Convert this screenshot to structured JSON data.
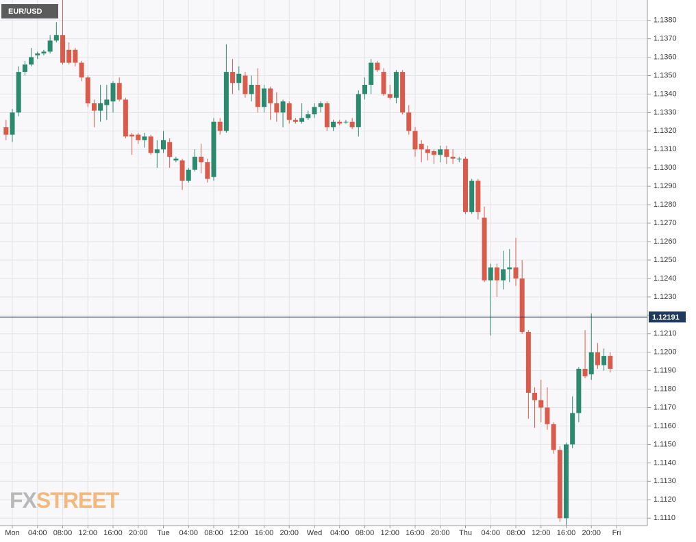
{
  "chart_data": {
    "type": "candlestick",
    "title": "EUR/USD",
    "watermark": {
      "prefix": "FX",
      "suffix": "STREET"
    },
    "x": [
      -1,
      0,
      1,
      2,
      3,
      4,
      5,
      6,
      7,
      8,
      9,
      10,
      11,
      12,
      13,
      14,
      15,
      16,
      17,
      18,
      19,
      20,
      21,
      22,
      23,
      24,
      25,
      26,
      27,
      28,
      29,
      30,
      31,
      32,
      33,
      34,
      35,
      36,
      37,
      38,
      39,
      40,
      41,
      42,
      43,
      44,
      45,
      46,
      47,
      48,
      49,
      50,
      51,
      52,
      53,
      54,
      55,
      56,
      57,
      58,
      59,
      60,
      61,
      62,
      63,
      64,
      65,
      66,
      67,
      68,
      69,
      70,
      71,
      72,
      73,
      74,
      75,
      76,
      77,
      78,
      79,
      80,
      81,
      82,
      83,
      84,
      85,
      86,
      87,
      88,
      89,
      90,
      91,
      92,
      93,
      94,
      95
    ],
    "open": [
      1.1322,
      1.1318,
      1.133,
      1.1352,
      1.1356,
      1.1361,
      1.1362,
      1.1363,
      1.1369,
      1.1372,
      1.1364,
      1.1364,
      1.1357,
      1.1349,
      1.1335,
      1.1331,
      1.1334,
      1.1336,
      1.1346,
      1.1337,
      1.1318,
      1.1318,
      1.1315,
      1.1317,
      1.1308,
      1.131,
      1.1314,
      1.1304,
      1.1304,
      1.1293,
      1.1299,
      1.1306,
      1.1303,
      1.1295,
      1.1325,
      1.132,
      1.1352,
      1.1346,
      1.135,
      1.134,
      1.1345,
      1.1333,
      1.1343,
      1.1335,
      1.133,
      1.1335,
      1.1326,
      1.1325,
      1.1327,
      1.1329,
      1.1333,
      1.1335,
      1.1322,
      1.1325,
      1.1325,
      1.1325,
      1.1322,
      1.134,
      1.1345,
      1.1357,
      1.1352,
      1.134,
      1.1338,
      1.1352,
      1.133,
      1.132,
      1.1313,
      1.131,
      1.1309,
      1.1307,
      1.131,
      1.1306,
      1.1305,
      1.1305,
      1.1276,
      1.1293,
      1.1273,
      1.1239,
      1.1246,
      1.1239,
      1.1245,
      1.1246,
      1.124,
      1.1211,
      1.1178,
      1.1174,
      1.117,
      1.1161,
      1.1147,
      1.111,
      1.115,
      1.1167,
      1.1191,
      1.1188,
      1.12,
      1.1193,
      1.1198
    ],
    "high": [
      1.1326,
      1.1332,
      1.1355,
      1.1358,
      1.1365,
      1.1363,
      1.1364,
      1.1372,
      1.1379,
      1.1391,
      1.1368,
      1.1365,
      1.1358,
      1.135,
      1.1337,
      1.1345,
      1.1345,
      1.1347,
      1.1349,
      1.1338,
      1.1319,
      1.1319,
      1.1319,
      1.1318,
      1.1315,
      1.132,
      1.1316,
      1.1306,
      1.1305,
      1.13,
      1.131,
      1.1313,
      1.1305,
      1.1327,
      1.1327,
      1.1367,
      1.1359,
      1.1355,
      1.1352,
      1.135,
      1.1354,
      1.1345,
      1.1344,
      1.1341,
      1.1337,
      1.1336,
      1.1327,
      1.1335,
      1.1331,
      1.1335,
      1.1336,
      1.1336,
      1.1326,
      1.1326,
      1.1326,
      1.1327,
      1.1342,
      1.1349,
      1.1359,
      1.1358,
      1.1354,
      1.1345,
      1.1353,
      1.1353,
      1.1334,
      1.1322,
      1.1315,
      1.1312,
      1.131,
      1.1312,
      1.1312,
      1.131,
      1.1306,
      1.1306,
      1.1294,
      1.1294,
      1.1279,
      1.1248,
      1.1248,
      1.1255,
      1.1256,
      1.1262,
      1.125,
      1.1212,
      1.1181,
      1.1185,
      1.1181,
      1.1162,
      1.1149,
      1.1151,
      1.1176,
      1.1192,
      1.1212,
      1.1221,
      1.1205,
      1.1202,
      1.12
    ],
    "low": [
      1.1315,
      1.1314,
      1.1328,
      1.135,
      1.1355,
      1.1359,
      1.1361,
      1.1362,
      1.1368,
      1.1356,
      1.1356,
      1.1355,
      1.1347,
      1.1333,
      1.1322,
      1.1325,
      1.1326,
      1.133,
      1.1336,
      1.1316,
      1.1307,
      1.1313,
      1.1311,
      1.1307,
      1.13,
      1.1308,
      1.13,
      1.1303,
      1.1288,
      1.1292,
      1.1298,
      1.1297,
      1.1292,
      1.1293,
      1.1318,
      1.1319,
      1.134,
      1.1342,
      1.1338,
      1.1336,
      1.133,
      1.133,
      1.1326,
      1.1325,
      1.1322,
      1.1324,
      1.1324,
      1.1324,
      1.1326,
      1.1327,
      1.133,
      1.132,
      1.132,
      1.1323,
      1.1324,
      1.1321,
      1.1317,
      1.1337,
      1.134,
      1.1352,
      1.1339,
      1.1337,
      1.1335,
      1.1329,
      1.1318,
      1.1306,
      1.1303,
      1.1304,
      1.1302,
      1.1303,
      1.1302,
      1.1302,
      1.1303,
      1.1275,
      1.1275,
      1.1272,
      1.1238,
      1.1209,
      1.123,
      1.1234,
      1.1238,
      1.1236,
      1.121,
      1.1164,
      1.1159,
      1.1162,
      1.1158,
      1.1145,
      1.1108,
      1.1106,
      1.1148,
      1.1162,
      1.1186,
      1.1185,
      1.1191,
      1.119,
      1.1189
    ],
    "close": [
      1.1318,
      1.133,
      1.1352,
      1.1356,
      1.136,
      1.1362,
      1.1363,
      1.1369,
      1.1372,
      1.1357,
      1.1357,
      1.1357,
      1.1349,
      1.1335,
      1.1331,
      1.1335,
      1.1337,
      1.1346,
      1.1337,
      1.1317,
      1.1317,
      1.1315,
      1.1317,
      1.1308,
      1.131,
      1.1315,
      1.1306,
      1.1305,
      1.1293,
      1.1299,
      1.1306,
      1.1303,
      1.1294,
      1.1325,
      1.132,
      1.1352,
      1.1346,
      1.1351,
      1.134,
      1.1345,
      1.1333,
      1.1343,
      1.1335,
      1.133,
      1.1336,
      1.1326,
      1.1325,
      1.1327,
      1.1329,
      1.1333,
      1.1335,
      1.1322,
      1.1325,
      1.1324,
      1.1325,
      1.1322,
      1.134,
      1.1345,
      1.1357,
      1.1353,
      1.134,
      1.1338,
      1.1352,
      1.133,
      1.132,
      1.131,
      1.131,
      1.1308,
      1.1307,
      1.131,
      1.1306,
      1.1305,
      1.1305,
      1.1276,
      1.1293,
      1.1276,
      1.1239,
      1.1246,
      1.1239,
      1.1245,
      1.1246,
      1.124,
      1.1211,
      1.1178,
      1.1174,
      1.117,
      1.1161,
      1.1147,
      1.111,
      1.115,
      1.1167,
      1.1191,
      1.1187,
      1.12,
      1.1193,
      1.1198,
      1.1191
    ],
    "up_color": "#2b8a6d",
    "down_color": "#d95b4b",
    "last_price": 1.12191,
    "last_price_color": "#1f3a5c",
    "xlim": [
      -1.96,
      100.9
    ],
    "ylim": [
      1.1106,
      1.1391
    ],
    "grid": true,
    "xticks": [
      {
        "value": 0,
        "label": "Mon"
      },
      {
        "value": 4,
        "label": "04:00"
      },
      {
        "value": 8,
        "label": "08:00"
      },
      {
        "value": 12,
        "label": "12:00"
      },
      {
        "value": 16,
        "label": "16:00"
      },
      {
        "value": 20,
        "label": "20:00"
      },
      {
        "value": 24,
        "label": "Tue"
      },
      {
        "value": 28,
        "label": "04:00"
      },
      {
        "value": 32,
        "label": "08:00"
      },
      {
        "value": 36,
        "label": "12:00"
      },
      {
        "value": 40,
        "label": "16:00"
      },
      {
        "value": 44,
        "label": "20:00"
      },
      {
        "value": 48,
        "label": "Wed"
      },
      {
        "value": 52,
        "label": "04:00"
      },
      {
        "value": 56,
        "label": "08:00"
      },
      {
        "value": 60,
        "label": "12:00"
      },
      {
        "value": 64,
        "label": "16:00"
      },
      {
        "value": 68,
        "label": "20:00"
      },
      {
        "value": 72,
        "label": "Thu"
      },
      {
        "value": 76,
        "label": "04:00"
      },
      {
        "value": 80,
        "label": "08:00"
      },
      {
        "value": 84,
        "label": "12:00"
      },
      {
        "value": 88,
        "label": "16:00"
      },
      {
        "value": 92,
        "label": "20:00"
      },
      {
        "value": 96,
        "label": "Fri"
      }
    ],
    "yticks": [
      {
        "value": 1.111,
        "label": "1.1110"
      },
      {
        "value": 1.112,
        "label": "1.1120"
      },
      {
        "value": 1.113,
        "label": "1.1130"
      },
      {
        "value": 1.114,
        "label": "1.1140"
      },
      {
        "value": 1.115,
        "label": "1.1150"
      },
      {
        "value": 1.116,
        "label": "1.1160"
      },
      {
        "value": 1.117,
        "label": "1.1170"
      },
      {
        "value": 1.118,
        "label": "1.1180"
      },
      {
        "value": 1.119,
        "label": "1.1190"
      },
      {
        "value": 1.12,
        "label": "1.1200"
      },
      {
        "value": 1.121,
        "label": "1.1210"
      },
      {
        "value": 1.122,
        "label": "1.1220"
      },
      {
        "value": 1.123,
        "label": "1.1230"
      },
      {
        "value": 1.124,
        "label": "1.1240"
      },
      {
        "value": 1.125,
        "label": "1.1250"
      },
      {
        "value": 1.126,
        "label": "1.1260"
      },
      {
        "value": 1.127,
        "label": "1.1270"
      },
      {
        "value": 1.128,
        "label": "1.1280"
      },
      {
        "value": 1.129,
        "label": "1.1290"
      },
      {
        "value": 1.13,
        "label": "1.1300"
      },
      {
        "value": 1.131,
        "label": "1.1310"
      },
      {
        "value": 1.132,
        "label": "1.1320"
      },
      {
        "value": 1.133,
        "label": "1.1330"
      },
      {
        "value": 1.134,
        "label": "1.1340"
      },
      {
        "value": 1.135,
        "label": "1.1350"
      },
      {
        "value": 1.136,
        "label": "1.1360"
      },
      {
        "value": 1.137,
        "label": "1.1370"
      },
      {
        "value": 1.138,
        "label": "1.1380"
      }
    ]
  }
}
